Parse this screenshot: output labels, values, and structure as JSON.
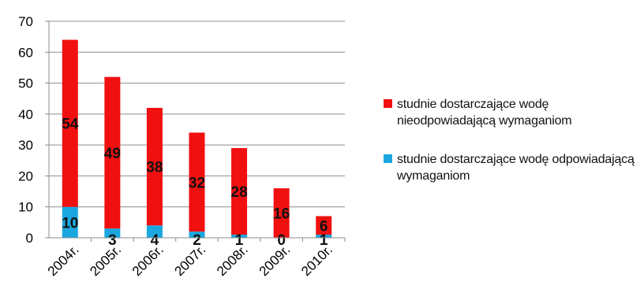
{
  "chart_data": {
    "type": "bar",
    "stacked": true,
    "categories": [
      "2004r.",
      "2005r.",
      "2006r.",
      "2007r.",
      "2008r.",
      "2009r.",
      "2010r."
    ],
    "series": [
      {
        "name": "studnie dostarczające wodę odpowiadającą wymaganiom",
        "color": "#1aa7e0",
        "values": [
          10,
          3,
          4,
          2,
          1,
          0,
          1
        ],
        "value_labels": [
          "10",
          "3",
          "4",
          "2",
          "1",
          "0",
          "1"
        ]
      },
      {
        "name": "studnie dostarczające wodę nieodpowiadającą wymaganiom",
        "color": "#f01010",
        "values": [
          54,
          49,
          38,
          32,
          28,
          16,
          6
        ],
        "value_labels": [
          "54",
          "49",
          "38",
          "32",
          "28",
          "16",
          "6"
        ]
      }
    ],
    "ylim": [
      0,
      70
    ],
    "yticks": [
      "0",
      "10",
      "20",
      "30",
      "40",
      "50",
      "60",
      "70"
    ],
    "grid": true,
    "legend_position": "right"
  },
  "legend": {
    "items": [
      {
        "label": "studnie dostarczające wodę nieodpowiadającą wymaganiom",
        "color": "#f01010"
      },
      {
        "label": "studnie dostarczające wodę odpowiadającą wymaganiom",
        "color": "#1aa7e0"
      }
    ]
  }
}
